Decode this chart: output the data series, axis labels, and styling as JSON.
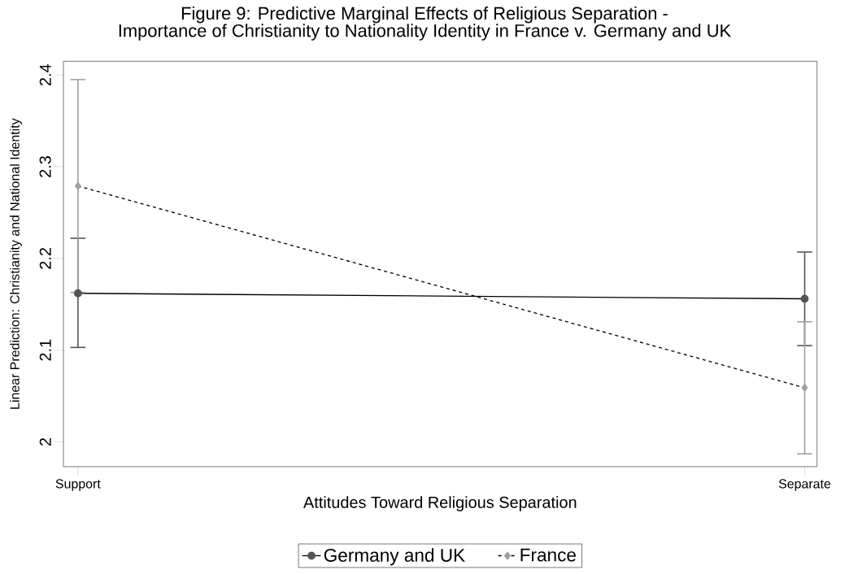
{
  "chart_data": {
    "type": "line",
    "title": "Figure 9: Predictive Marginal Effects of Religious Separation -",
    "subtitle": "Importance of Christianity to Nationality Identity in France v. Germany and UK",
    "xlabel": "Attitudes Toward Religious Separation",
    "ylabel": "Linear Prediction: Christianity and National Identity",
    "categories": [
      "Support",
      "Separate"
    ],
    "series": [
      {
        "name": "Germany and UK",
        "color": "#555555",
        "marker": "circle",
        "line_style": "solid",
        "values": [
          2.162,
          2.156
        ],
        "errors": [
          [
            2.103,
            2.222
          ],
          [
            2.105,
            2.207
          ]
        ]
      },
      {
        "name": "France",
        "color": "#a0a0a0",
        "marker": "diamond",
        "line_style": "dashed",
        "values": [
          2.279,
          2.059
        ],
        "errors": [
          [
            2.163,
            2.395
          ],
          [
            1.987,
            2.131
          ]
        ]
      }
    ],
    "ylim": [
      1.973,
      2.415
    ],
    "yticks": [
      2,
      2.1,
      2.2,
      2.3,
      2.4
    ],
    "grid": false,
    "legend": "bottom"
  }
}
